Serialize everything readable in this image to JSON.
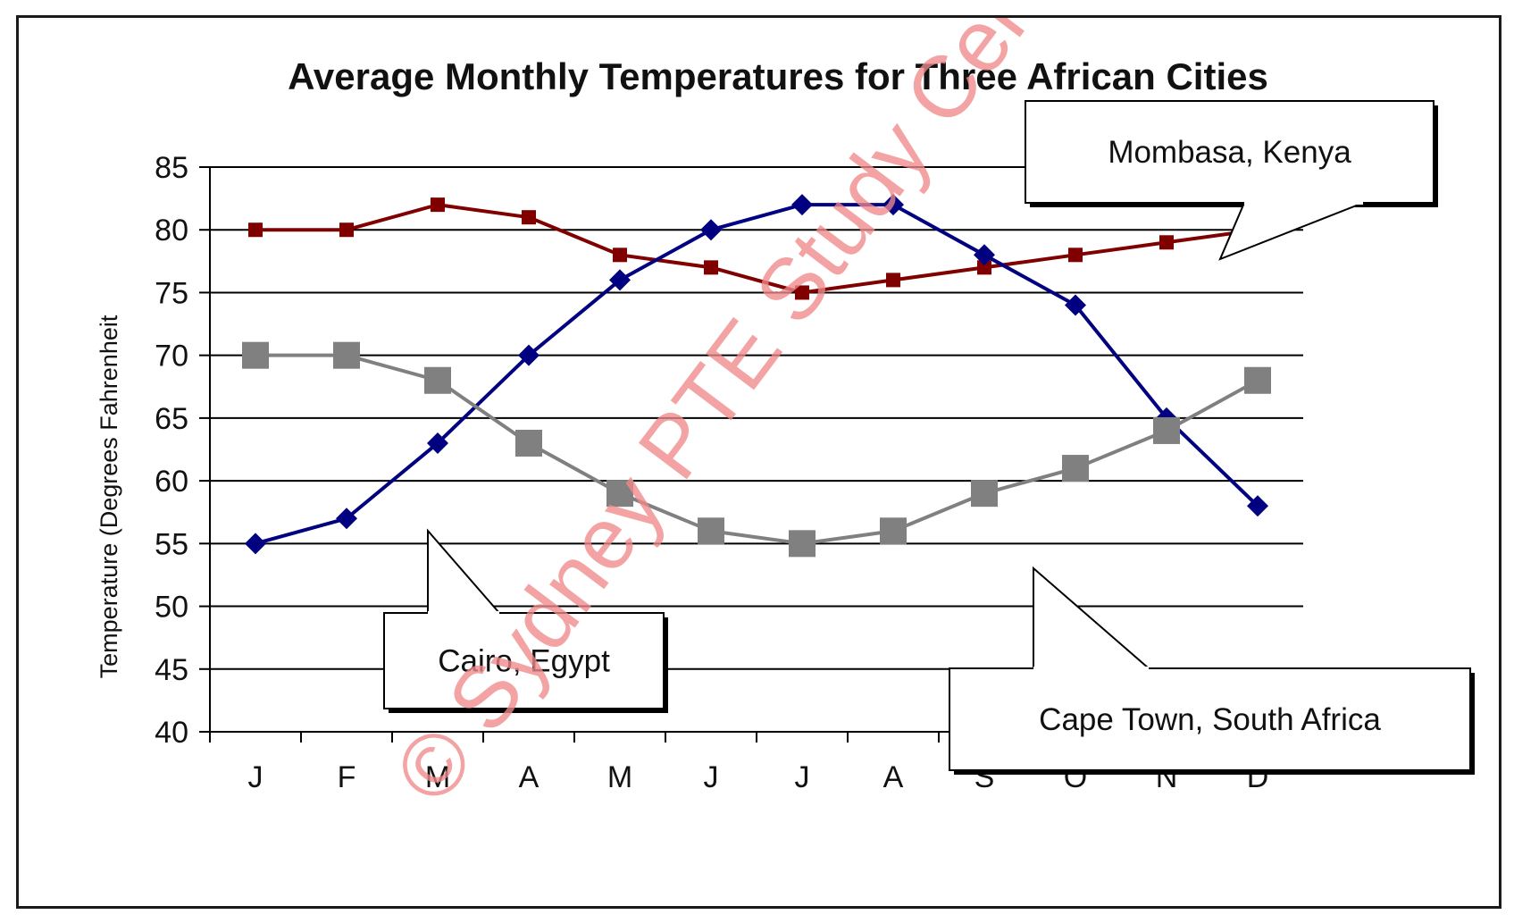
{
  "chart_data": {
    "type": "line",
    "title": "Average Monthly Temperatures for Three African Cities",
    "xlabel": "",
    "ylabel": "Temperature (Degrees Fahrenheit",
    "categories": [
      "J",
      "F",
      "M",
      "A",
      "M",
      "J",
      "J",
      "A",
      "S",
      "O",
      "N",
      "D"
    ],
    "ylim": [
      40,
      85
    ],
    "yticks": [
      40,
      45,
      50,
      55,
      60,
      65,
      70,
      75,
      80,
      85
    ],
    "grid": "horizontal",
    "legend": "none",
    "series": [
      {
        "name": "Mombasa, Kenya",
        "color": "#800000",
        "marker": "square",
        "values": [
          80,
          80,
          82,
          81,
          78,
          77,
          75,
          76,
          77,
          78,
          79,
          80
        ]
      },
      {
        "name": "Cairo, Egypt",
        "color": "#000080",
        "marker": "diamond",
        "values": [
          55,
          57,
          63,
          70,
          76,
          80,
          82,
          82,
          78,
          74,
          65,
          58
        ]
      },
      {
        "name": "Cape Town, South Africa",
        "color": "#808080",
        "marker": "square",
        "values": [
          70,
          70,
          68,
          63,
          59,
          56,
          55,
          56,
          59,
          61,
          64,
          68
        ]
      }
    ],
    "watermark": "© Sydney PTE Study Centre"
  }
}
